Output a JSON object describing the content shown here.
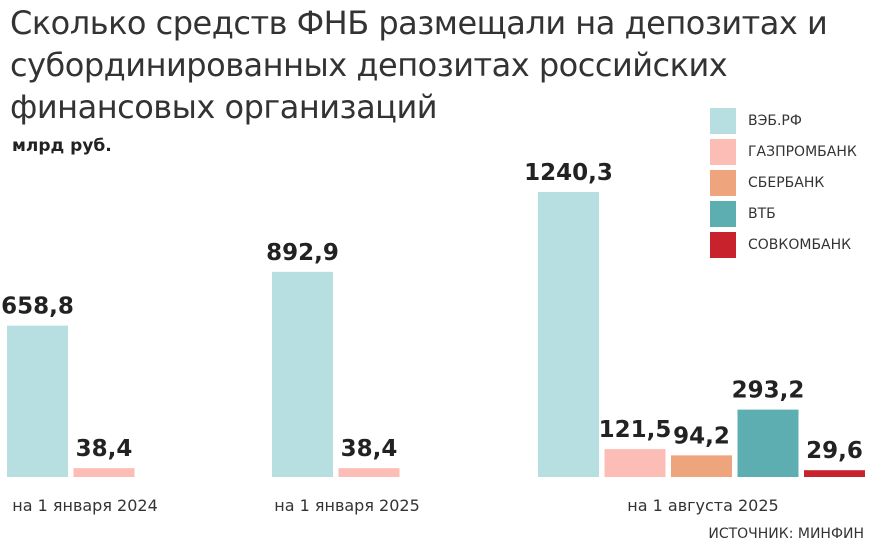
{
  "chart_data": {
    "type": "bar",
    "title": "Сколько средств ФНБ размещали на депозитах и субординированных депозитах российских финансовых организаций",
    "ylabel": "млрд руб.",
    "categories": [
      "на 1 января 2024",
      "на 1 января 2025",
      "на 1 августа 2025"
    ],
    "series": [
      {
        "name": "ВЭБ.РФ",
        "color": "#b7dfe1",
        "values": [
          658.8,
          892.9,
          1240.3
        ],
        "labels": [
          "658,8",
          "892,9",
          "1240,3"
        ]
      },
      {
        "name": "ГАЗПРОМБАНК",
        "color": "#fbbdb6",
        "values": [
          38.4,
          38.4,
          121.5
        ],
        "labels": [
          "38,4",
          "38,4",
          "121,5"
        ]
      },
      {
        "name": "СБЕРБАНК",
        "color": "#eea47d",
        "values": [
          null,
          null,
          94.2
        ],
        "labels": [
          null,
          null,
          "94,2"
        ]
      },
      {
        "name": "ВТБ",
        "color": "#5caeb0",
        "values": [
          null,
          null,
          293.2
        ],
        "labels": [
          null,
          null,
          "293,2"
        ]
      },
      {
        "name": "СОВКОМБАНК",
        "color": "#c8232c",
        "values": [
          null,
          null,
          29.6
        ],
        "labels": [
          null,
          null,
          "29,6"
        ]
      }
    ],
    "ylim": [
      0,
      1240.3
    ],
    "legend": "top-right",
    "grid": false,
    "source": "ИСТОЧНИК: МИНФИН"
  }
}
